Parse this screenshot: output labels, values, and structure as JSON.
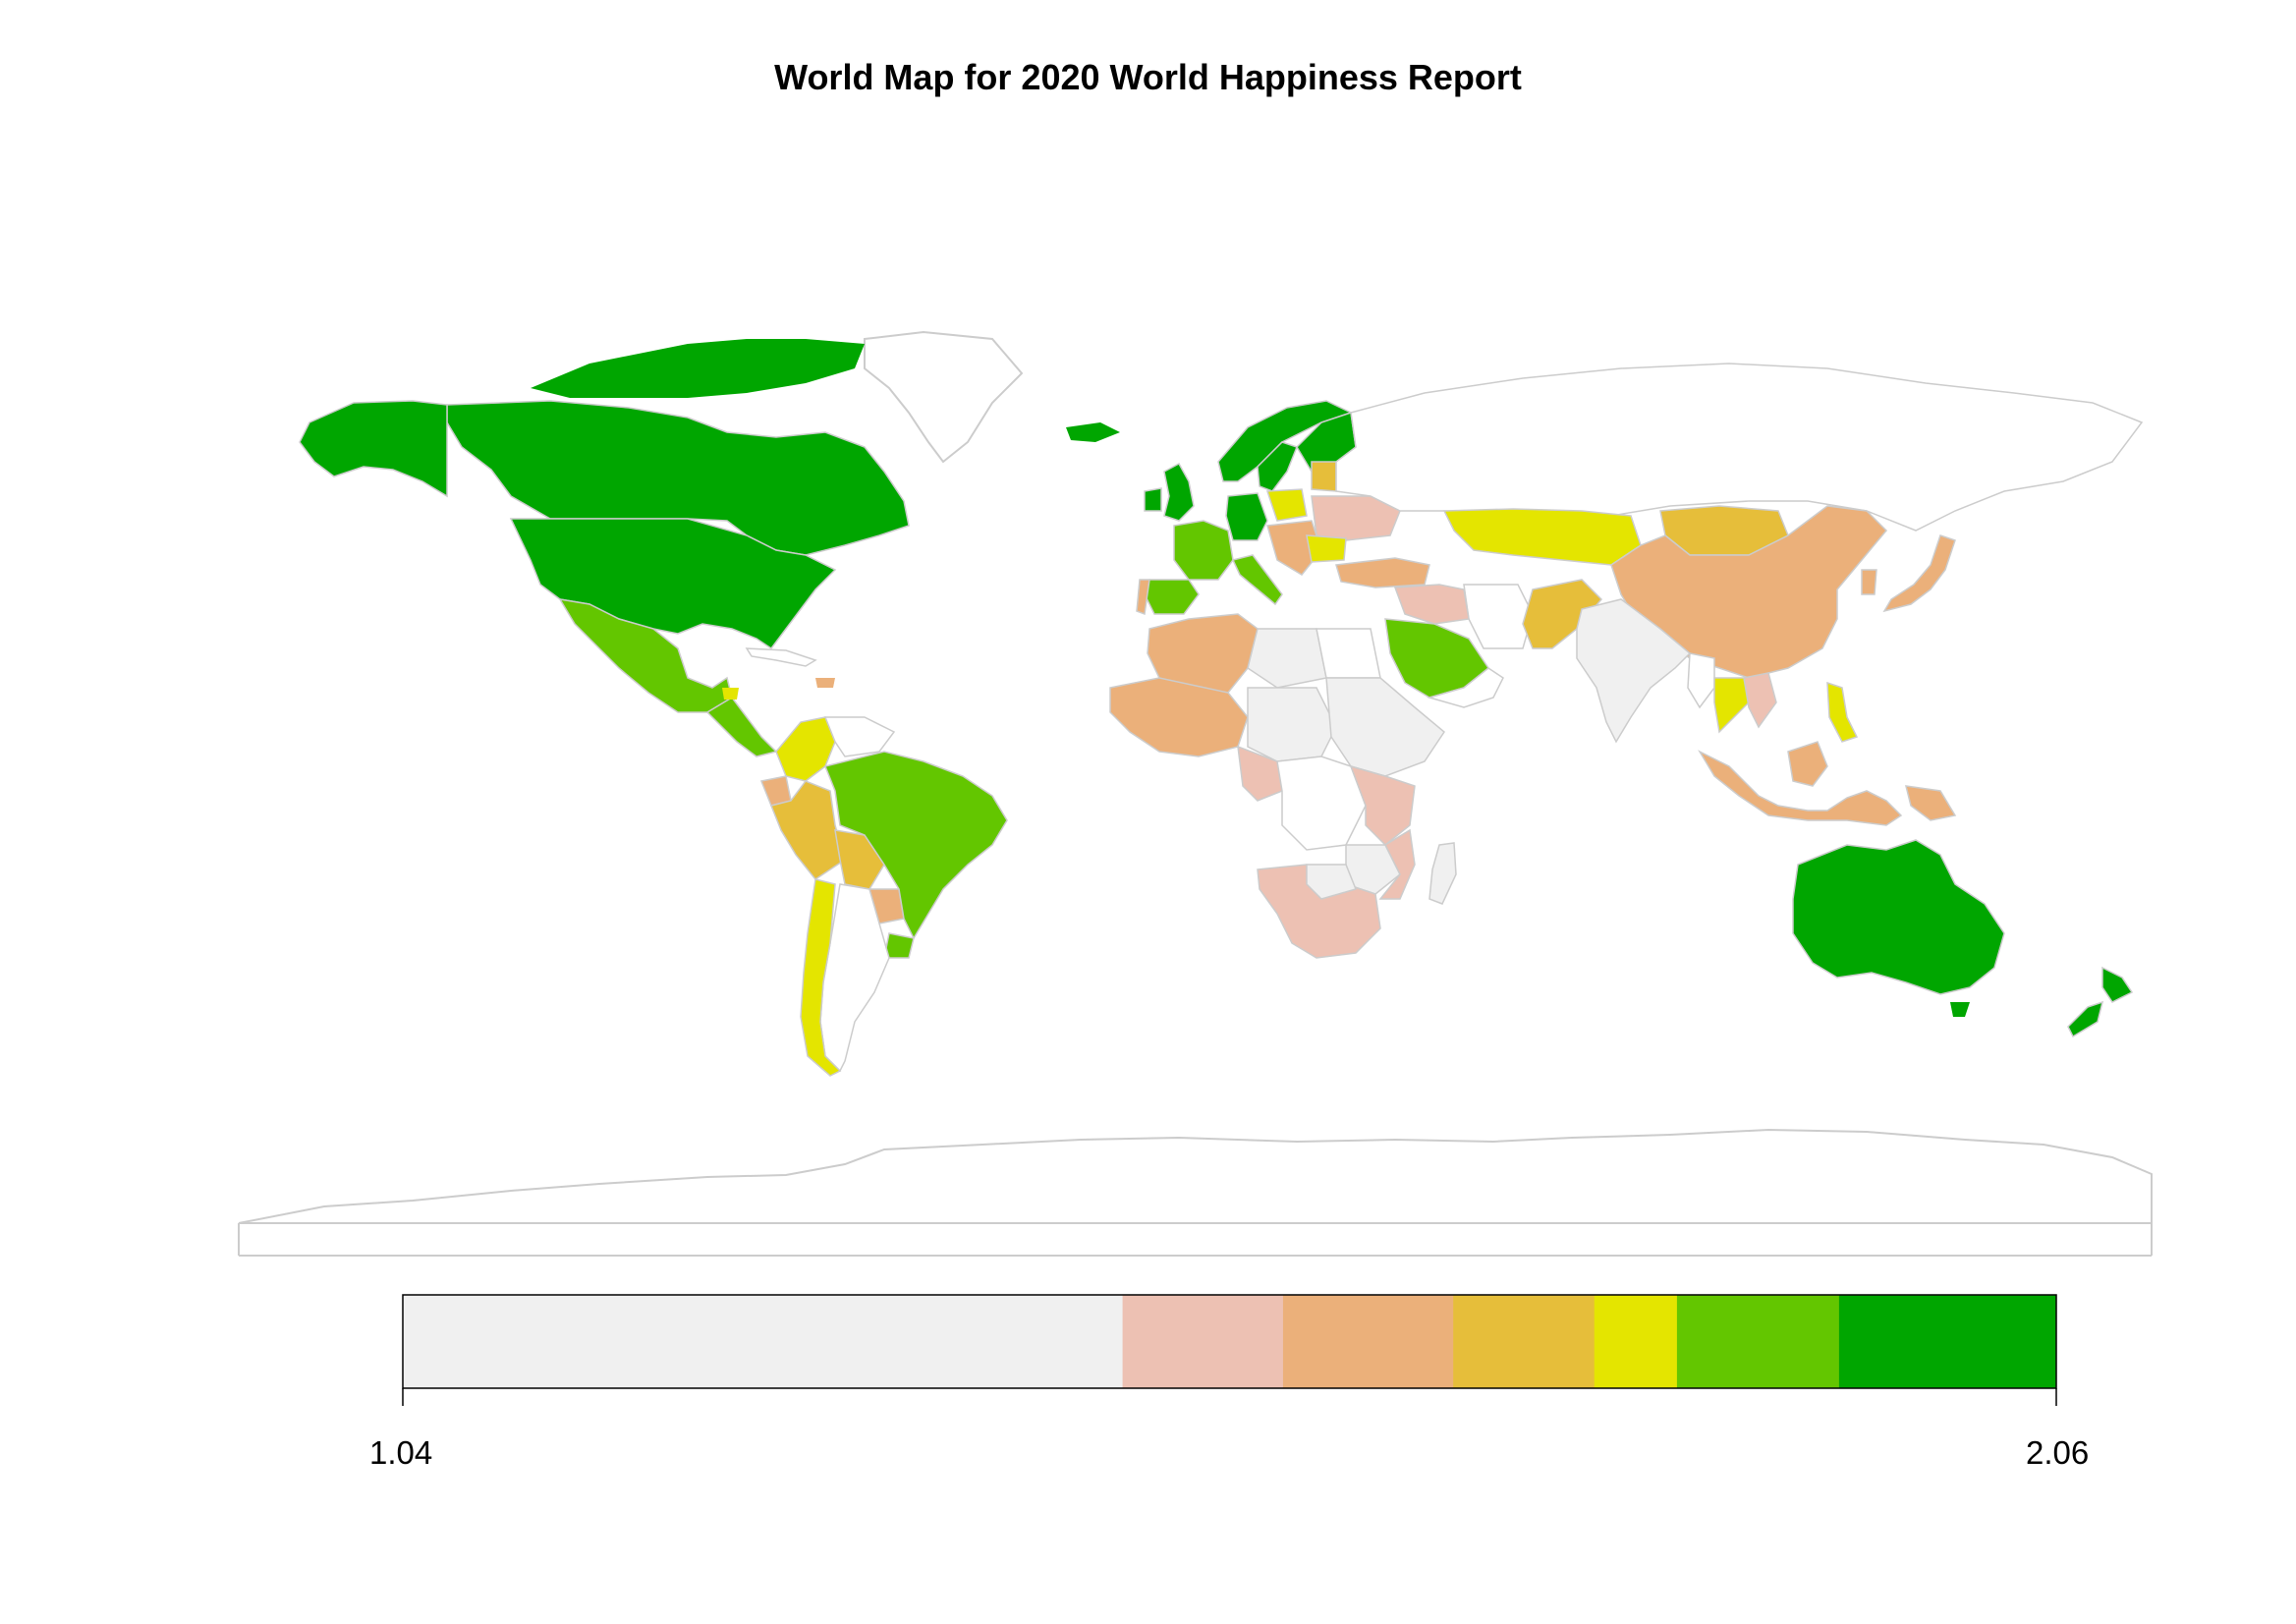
{
  "title": "World Map for 2020 World Happiness Report",
  "legend": {
    "min_label": "1.04",
    "max_label": "2.06",
    "min": 1.04,
    "max": 2.06,
    "bins": [
      {
        "from": 1.04,
        "to": 1.484,
        "color": "#F0F0F0"
      },
      {
        "from": 1.484,
        "to": 1.583,
        "color": "#EDC1B3"
      },
      {
        "from": 1.583,
        "to": 1.688,
        "color": "#EBB07A"
      },
      {
        "from": 1.688,
        "to": 1.775,
        "color": "#E6BE3A"
      },
      {
        "from": 1.775,
        "to": 1.826,
        "color": "#E4E500"
      },
      {
        "from": 1.826,
        "to": 1.926,
        "color": "#63C600"
      },
      {
        "from": 1.926,
        "to": 2.06,
        "color": "#00A600"
      }
    ]
  },
  "colors": {
    "no_data_fill": "#FFFFFF",
    "border": "#CCCCCC"
  }
}
